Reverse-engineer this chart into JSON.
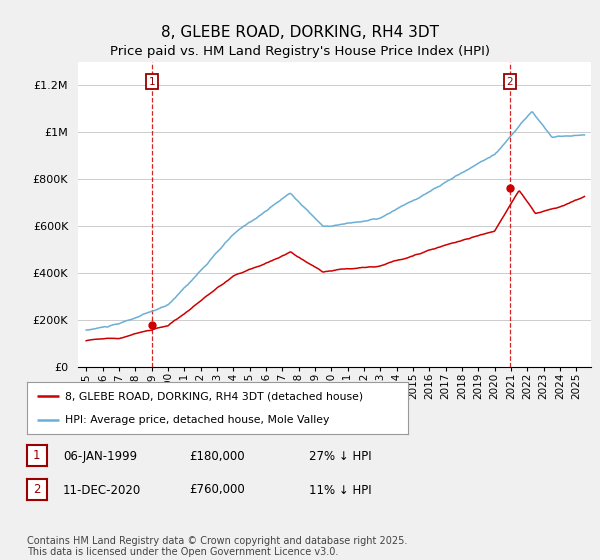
{
  "title": "8, GLEBE ROAD, DORKING, RH4 3DT",
  "subtitle": "Price paid vs. HM Land Registry's House Price Index (HPI)",
  "title_fontsize": 11,
  "subtitle_fontsize": 9.5,
  "ylim": [
    0,
    1300000
  ],
  "yticks": [
    0,
    200000,
    400000,
    600000,
    800000,
    1000000,
    1200000
  ],
  "ytick_labels": [
    "£0",
    "£200K",
    "£400K",
    "£600K",
    "£800K",
    "£1M",
    "£1.2M"
  ],
  "hpi_color": "#6baed6",
  "price_color": "#cc0000",
  "vline_color": "#cc0000",
  "background_color": "#f0f0f0",
  "plot_background": "#ffffff",
  "grid_color": "#cccccc",
  "legend_label_price": "8, GLEBE ROAD, DORKING, RH4 3DT (detached house)",
  "legend_label_hpi": "HPI: Average price, detached house, Mole Valley",
  "transaction1_date": "06-JAN-1999",
  "transaction1_price": 180000,
  "transaction1_hpi_note": "27% ↓ HPI",
  "transaction1_x": 1999.03,
  "transaction2_date": "11-DEC-2020",
  "transaction2_price": 760000,
  "transaction2_hpi_note": "11% ↓ HPI",
  "transaction2_x": 2020.94,
  "footer": "Contains HM Land Registry data © Crown copyright and database right 2025.\nThis data is licensed under the Open Government Licence v3.0.",
  "footer_fontsize": 7
}
